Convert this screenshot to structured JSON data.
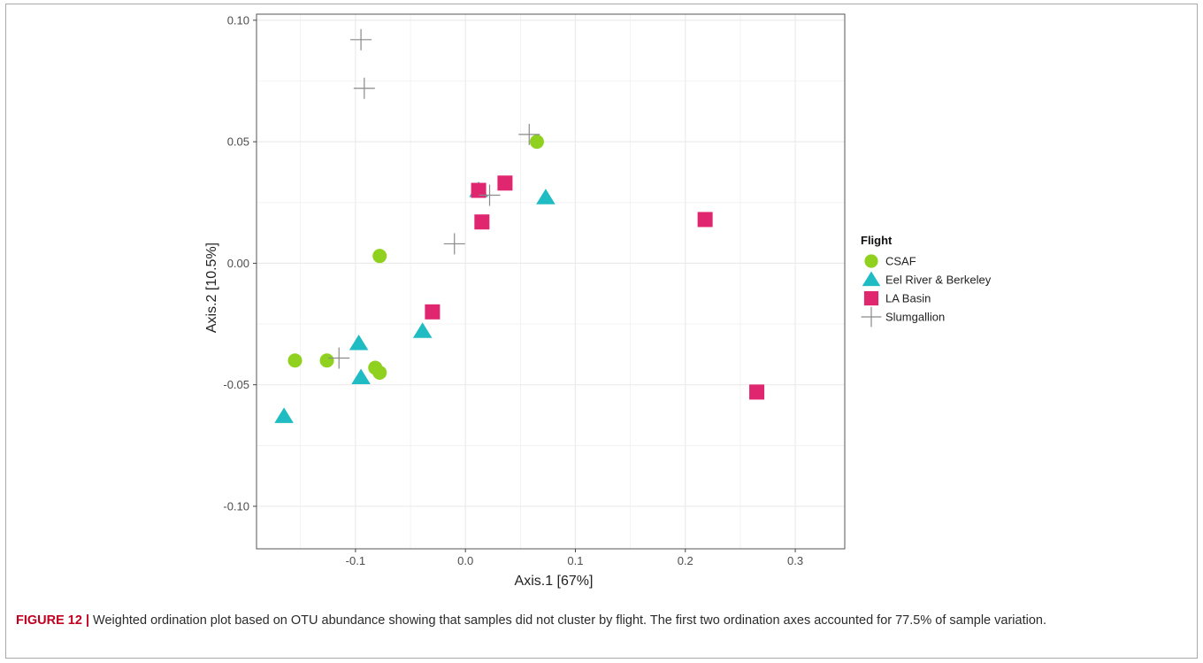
{
  "figure": {
    "label": "FIGURE 12 |",
    "caption": " Weighted ordination plot based on OTU abundance showing that samples did not cluster by flight. The first two ordination axes accounted for 77.5% of sample variation."
  },
  "colors": {
    "CSAF": "#8fd11e",
    "Eel River & Berkeley": "#1fbcc4",
    "LA Basin": "#e0266f",
    "Slumgallion": "#8a8a8a",
    "panel_border": "#555555",
    "grid": "#ebebeb"
  },
  "chart_data": {
    "type": "scatter",
    "title": "",
    "xlabel": "Axis.1   [67%]",
    "ylabel": "Axis.2   [10.5%]",
    "xlim": [
      -0.19,
      0.345
    ],
    "ylim": [
      -0.1175,
      0.1025
    ],
    "xticks": [
      -0.1,
      0.0,
      0.1,
      0.2,
      0.3
    ],
    "xtick_labels": [
      "-0.1",
      "0.0",
      "0.1",
      "0.2",
      "0.3"
    ],
    "yticks": [
      -0.1,
      -0.05,
      0.0,
      0.05,
      0.1
    ],
    "ytick_labels": [
      "-0.10",
      "-0.05",
      "0.00",
      "0.05",
      "0.10"
    ],
    "grid": true,
    "legend": {
      "title": "Flight",
      "placement": "right"
    },
    "series": [
      {
        "name": "CSAF",
        "marker": "circle",
        "points": [
          [
            -0.155,
            -0.04
          ],
          [
            -0.126,
            -0.04
          ],
          [
            -0.082,
            -0.043
          ],
          [
            -0.078,
            -0.045
          ],
          [
            -0.078,
            0.003
          ],
          [
            0.065,
            0.05
          ]
        ]
      },
      {
        "name": "Eel River & Berkeley",
        "marker": "triangle",
        "points": [
          [
            -0.165,
            -0.063
          ],
          [
            -0.097,
            -0.033
          ],
          [
            -0.095,
            -0.047
          ],
          [
            -0.039,
            -0.028
          ],
          [
            0.012,
            0.03
          ],
          [
            0.073,
            0.027
          ]
        ]
      },
      {
        "name": "LA Basin",
        "marker": "square",
        "points": [
          [
            -0.03,
            -0.02
          ],
          [
            0.012,
            0.03
          ],
          [
            0.015,
            0.017
          ],
          [
            0.036,
            0.033
          ],
          [
            0.218,
            0.018
          ],
          [
            0.265,
            -0.053
          ]
        ]
      },
      {
        "name": "Slumgallion",
        "marker": "plus",
        "points": [
          [
            -0.095,
            0.092
          ],
          [
            -0.092,
            0.072
          ],
          [
            -0.115,
            -0.039
          ],
          [
            -0.01,
            0.008
          ],
          [
            0.022,
            0.028
          ],
          [
            0.058,
            0.053
          ]
        ]
      }
    ]
  }
}
